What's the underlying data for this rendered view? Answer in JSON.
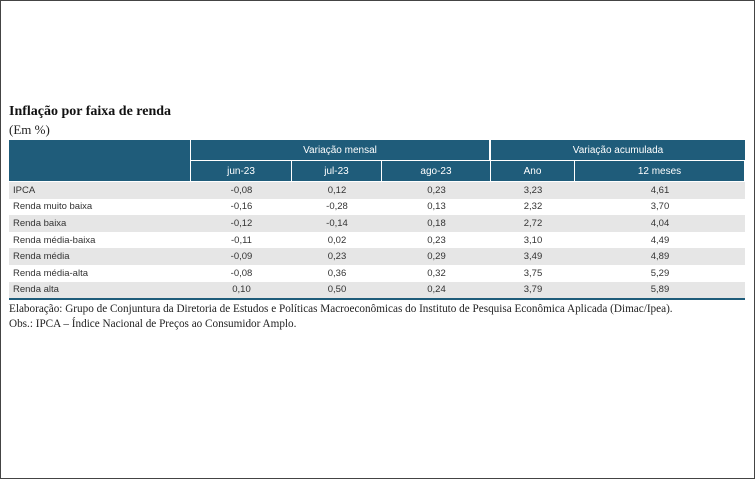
{
  "header": {
    "title": "Inflação por faixa de renda",
    "subtitle": "(Em %)"
  },
  "table": {
    "group_headers": [
      "Variação mensal",
      "Variação acumulada"
    ],
    "columns": [
      "jun-23",
      "jul-23",
      "ago-23",
      "Ano",
      "12 meses"
    ],
    "rows": [
      [
        "IPCA",
        "-0,08",
        "0,12",
        "0,23",
        "3,23",
        "4,61"
      ],
      [
        "Renda muito baixa",
        "-0,16",
        "-0,28",
        "0,13",
        "2,32",
        "3,70"
      ],
      [
        "Renda baixa",
        "-0,12",
        "-0,14",
        "0,18",
        "2,72",
        "4,04"
      ],
      [
        "Renda média-baixa",
        "-0,11",
        "0,02",
        "0,23",
        "3,10",
        "4,49"
      ],
      [
        "Renda média",
        "-0,09",
        "0,23",
        "0,29",
        "3,49",
        "4,89"
      ],
      [
        "Renda média-alta",
        "-0,08",
        "0,36",
        "0,32",
        "3,75",
        "5,29"
      ],
      [
        "Renda alta",
        "0,10",
        "0,50",
        "0,24",
        "3,79",
        "5,89"
      ]
    ]
  },
  "notes": [
    "Elaboração: Grupo de Conjuntura da Diretoria de Estudos e Políticas Macroeconômicas do Instituto de Pesquisa Econômica Aplicada (Dimac/Ipea).",
    "Obs.: IPCA – Índice Nacional de Preços ao Consumidor Amplo."
  ]
}
